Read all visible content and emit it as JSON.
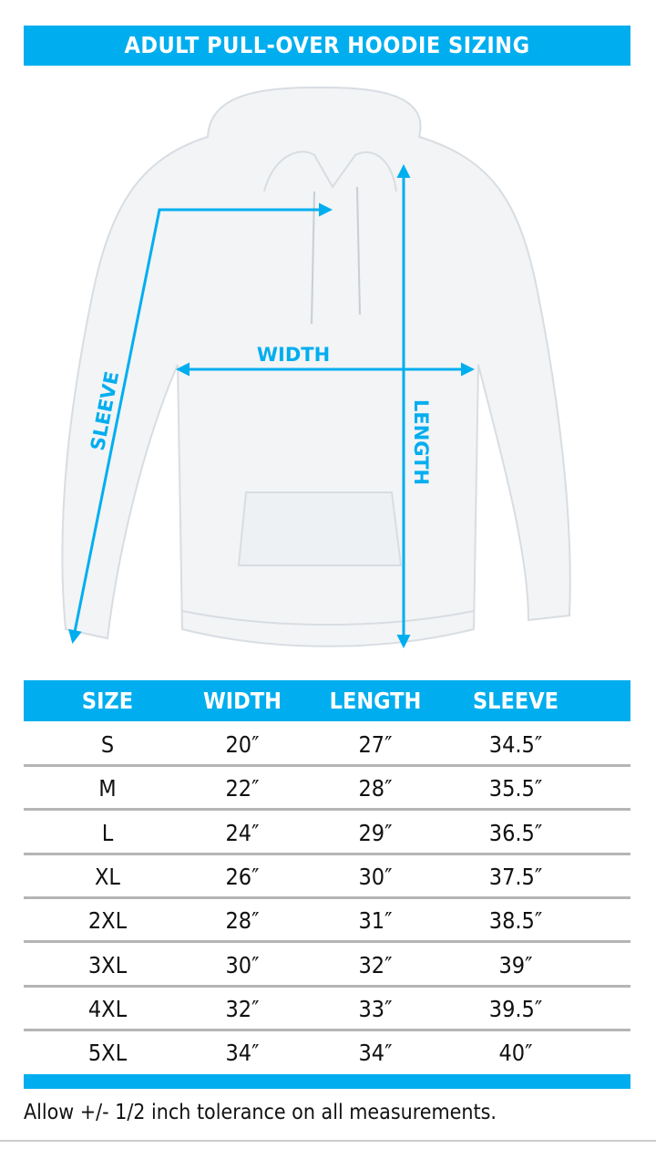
{
  "title": "ADULT PULL-OVER HOODIE SIZING",
  "diagram": {
    "labels": {
      "width": "WIDTH",
      "length": "LENGTH",
      "sleeve": "SLEEVE"
    },
    "accent_color": "#00aeef"
  },
  "table": {
    "headers": [
      "SIZE",
      "WIDTH",
      "LENGTH",
      "SLEEVE"
    ],
    "rows": [
      [
        "S",
        "20″",
        "27″",
        "34.5″"
      ],
      [
        "M",
        "22″",
        "28″",
        "35.5″"
      ],
      [
        "L",
        "24″",
        "29″",
        "36.5″"
      ],
      [
        "XL",
        "26″",
        "30″",
        "37.5″"
      ],
      [
        "2XL",
        "28″",
        "31″",
        "38.5″"
      ],
      [
        "3XL",
        "30″",
        "32″",
        "39″"
      ],
      [
        "4XL",
        "32″",
        "33″",
        "39.5″"
      ],
      [
        "5XL",
        "34″",
        "34″",
        "40″"
      ]
    ]
  },
  "note": "Allow +/- 1/2 inch tolerance on all measurements."
}
